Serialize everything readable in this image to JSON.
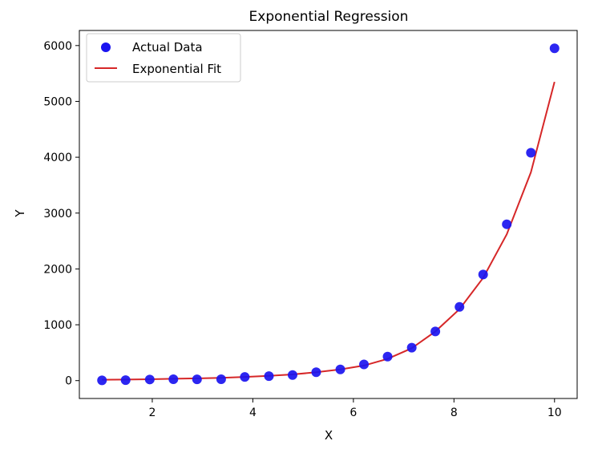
{
  "chart_data": {
    "type": "scatter",
    "title": "Exponential Regression",
    "xlabel": "X",
    "ylabel": "Y",
    "xlim": [
      0.55,
      10.45
    ],
    "ylim": [
      -320,
      6270
    ],
    "x_ticks": [
      2,
      4,
      6,
      8,
      10
    ],
    "y_ticks": [
      0,
      1000,
      2000,
      3000,
      4000,
      5000,
      6000
    ],
    "x_tick_labels": [
      "2",
      "4",
      "6",
      "8",
      "10"
    ],
    "y_tick_labels": [
      "0",
      "1000",
      "2000",
      "3000",
      "4000",
      "5000",
      "6000"
    ],
    "grid": false,
    "legend_position": "top-left",
    "series": [
      {
        "name": "Actual Data",
        "kind": "scatter",
        "color": "#1a14f0",
        "x": [
          1.0,
          1.47,
          1.95,
          2.42,
          2.89,
          3.37,
          3.84,
          4.32,
          4.79,
          5.26,
          5.74,
          6.21,
          6.68,
          7.16,
          7.63,
          8.11,
          8.58,
          9.05,
          9.53,
          10.0
        ],
        "y": [
          5,
          8,
          20,
          25,
          22,
          25,
          65,
          80,
          100,
          150,
          200,
          290,
          430,
          590,
          880,
          1320,
          1900,
          2800,
          4080,
          5950
        ]
      },
      {
        "name": "Exponential Fit",
        "kind": "line",
        "color": "#d62728",
        "x": [
          1.0,
          1.47,
          1.95,
          2.42,
          2.89,
          3.37,
          3.84,
          4.32,
          4.79,
          5.26,
          5.74,
          6.21,
          6.68,
          7.16,
          7.63,
          8.11,
          8.58,
          9.05,
          9.53,
          10.0
        ],
        "y": [
          15,
          20,
          25,
          33,
          40,
          50,
          65,
          85,
          110,
          150,
          200,
          270,
          390,
          580,
          880,
          1280,
          1840,
          2620,
          3730,
          5350
        ]
      }
    ]
  }
}
